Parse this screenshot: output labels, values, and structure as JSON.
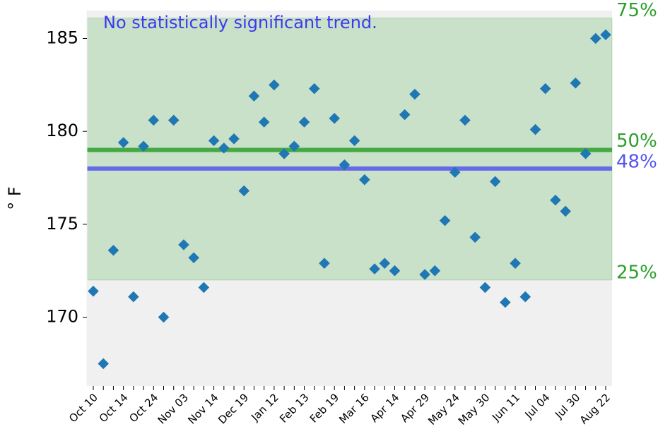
{
  "chart_data": {
    "type": "scatter",
    "title": "No statistically significant trend.",
    "ylabel": "° F",
    "categories": [
      "Oct 10",
      null,
      null,
      "Oct 14",
      null,
      null,
      "Oct 24",
      null,
      null,
      "Nov 03",
      null,
      null,
      "Nov 14",
      null,
      null,
      "Dec 19",
      null,
      null,
      "Jan 12",
      null,
      null,
      "Feb 13",
      null,
      null,
      "Feb 19",
      null,
      null,
      "Mar 16",
      null,
      null,
      "Apr 14",
      null,
      null,
      "Apr 29",
      null,
      null,
      "May 24",
      null,
      null,
      "May 30",
      null,
      null,
      "Jun 11",
      null,
      null,
      "Jul 04",
      null,
      null,
      "Jul 30",
      null,
      null,
      "Aug 22"
    ],
    "values": [
      171.4,
      167.5,
      173.6,
      179.4,
      171.1,
      179.2,
      180.6,
      170.0,
      180.6,
      173.9,
      173.2,
      171.6,
      179.5,
      179.1,
      179.6,
      176.8,
      181.9,
      180.5,
      182.5,
      178.8,
      179.2,
      180.5,
      182.3,
      172.9,
      180.7,
      178.2,
      179.5,
      177.4,
      172.6,
      172.9,
      172.5,
      180.9,
      182.0,
      172.3,
      172.5,
      175.2,
      177.8,
      180.6,
      174.3,
      171.6,
      177.3,
      170.8,
      172.9,
      171.1,
      180.1,
      182.3,
      176.3,
      175.7,
      182.6,
      178.8,
      185.0,
      185.2
    ],
    "color": "#1f77b4",
    "ylim": [
      166.3,
      186.5
    ],
    "yticks": [
      170,
      175,
      180,
      185
    ],
    "band": {
      "color": "#2ca02c",
      "from": {
        "value": 172,
        "label": "25%"
      },
      "to": {
        "value": 186.1,
        "label": "75%"
      }
    },
    "reference_lines": [
      {
        "value": 179,
        "label": "50%",
        "color": "#2ca02c"
      },
      {
        "value": 178,
        "label": "48%",
        "color": "#5555ee"
      }
    ]
  }
}
